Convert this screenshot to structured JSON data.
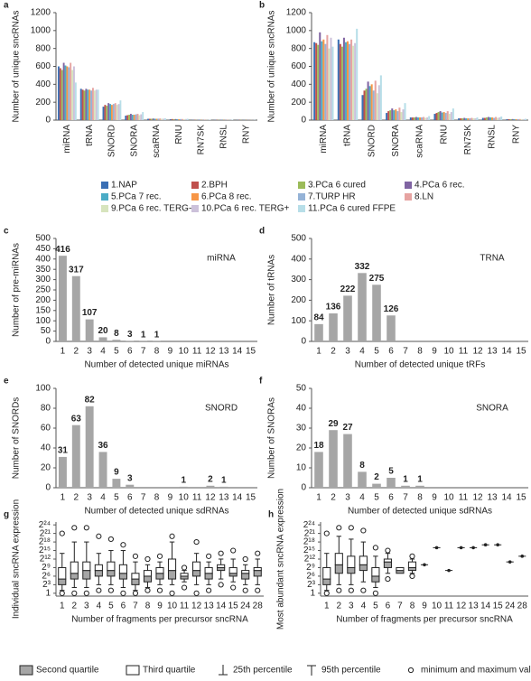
{
  "chart_data": [
    {
      "type": "grouped-bar",
      "panel_label": "a",
      "y_label": "Number of unique sncRNAs",
      "categories": [
        "miRNA",
        "tRNA",
        "SNORD",
        "SNORA",
        "scaRNA",
        "RNU",
        "RN7SK",
        "RNSL",
        "RNY"
      ],
      "ylim": [
        0,
        1200
      ],
      "yticks": [
        0,
        200,
        400,
        600,
        800,
        1000,
        1200
      ],
      "series": [
        {
          "name": "1.NAP",
          "color": "#3a6fb4",
          "values": [
            600,
            350,
            150,
            50,
            15,
            10,
            3,
            3,
            2
          ]
        },
        {
          "name": "2.BPH",
          "color": "#c0504d",
          "values": [
            580,
            340,
            170,
            55,
            15,
            12,
            3,
            3,
            2
          ]
        },
        {
          "name": "3.PCa 6 cured",
          "color": "#9bbb59",
          "values": [
            560,
            330,
            160,
            60,
            15,
            10,
            3,
            3,
            2
          ]
        },
        {
          "name": "4.PCa 6 rec.",
          "color": "#8064a2",
          "values": [
            640,
            350,
            190,
            70,
            18,
            12,
            4,
            4,
            2
          ]
        },
        {
          "name": "5.PCa 7 rec.",
          "color": "#4bacc6",
          "values": [
            610,
            340,
            180,
            60,
            15,
            10,
            3,
            3,
            2
          ]
        },
        {
          "name": "6.PCa 8 rec.",
          "color": "#f79646",
          "values": [
            600,
            340,
            170,
            60,
            15,
            10,
            3,
            3,
            2
          ]
        },
        {
          "name": "7.TURP HR",
          "color": "#95b3d7",
          "values": [
            590,
            330,
            180,
            65,
            16,
            12,
            3,
            3,
            2
          ]
        },
        {
          "name": "8.LN",
          "color": "#e6a3a1",
          "values": [
            640,
            360,
            190,
            70,
            18,
            12,
            4,
            4,
            2
          ]
        },
        {
          "name": "9.PCa 6 rec. TERG-",
          "color": "#d7e4bd",
          "values": [
            560,
            330,
            170,
            55,
            15,
            10,
            3,
            3,
            2
          ]
        },
        {
          "name": "10.PCa 6 rec. TERG+",
          "color": "#ccc1da",
          "values": [
            600,
            340,
            180,
            65,
            16,
            12,
            3,
            3,
            2
          ]
        },
        {
          "name": "11.PCa 6 cured FFPE",
          "color": "#b7dee8",
          "values": [
            420,
            340,
            220,
            90,
            20,
            15,
            5,
            5,
            3
          ]
        }
      ]
    },
    {
      "type": "grouped-bar",
      "panel_label": "b",
      "y_label": "Number of unique sncRNAs",
      "categories": [
        "miRNA",
        "tRNA",
        "SNORD",
        "SNORA",
        "scaRNA",
        "RNU",
        "RN7SK",
        "RNSL",
        "RNY"
      ],
      "ylim": [
        0,
        1200
      ],
      "yticks": [
        0,
        200,
        400,
        600,
        800,
        1000,
        1200
      ],
      "series": [
        {
          "name": "1.NAP",
          "color": "#3a6fb4",
          "values": [
            870,
            900,
            280,
            80,
            30,
            70,
            20,
            25,
            10
          ]
        },
        {
          "name": "2.BPH",
          "color": "#c0504d",
          "values": [
            860,
            850,
            330,
            100,
            30,
            80,
            20,
            25,
            10
          ]
        },
        {
          "name": "3.PCa 6 cured",
          "color": "#9bbb59",
          "values": [
            840,
            820,
            350,
            110,
            30,
            90,
            20,
            30,
            10
          ]
        },
        {
          "name": "4.PCa 6 rec.",
          "color": "#8064a2",
          "values": [
            980,
            920,
            430,
            130,
            35,
            100,
            25,
            35,
            12
          ]
        },
        {
          "name": "5.PCa 7 rec.",
          "color": "#4bacc6",
          "values": [
            880,
            870,
            380,
            110,
            30,
            85,
            20,
            30,
            10
          ]
        },
        {
          "name": "6.PCa 8 rec.",
          "color": "#f79646",
          "values": [
            900,
            880,
            400,
            120,
            30,
            90,
            20,
            30,
            10
          ]
        },
        {
          "name": "7.TURP HR",
          "color": "#95b3d7",
          "values": [
            850,
            850,
            330,
            100,
            30,
            80,
            20,
            25,
            10
          ]
        },
        {
          "name": "8.LN",
          "color": "#e6a3a1",
          "values": [
            950,
            900,
            440,
            140,
            35,
            100,
            25,
            35,
            12
          ]
        },
        {
          "name": "9.PCa 6 rec. TERG-",
          "color": "#d7e4bd",
          "values": [
            800,
            830,
            300,
            90,
            25,
            70,
            20,
            25,
            10
          ]
        },
        {
          "name": "10.PCa 6 rec. TERG+",
          "color": "#ccc1da",
          "values": [
            920,
            860,
            390,
            120,
            30,
            90,
            20,
            30,
            10
          ]
        },
        {
          "name": "11.PCa 6 cured FFPE",
          "color": "#b7dee8",
          "values": [
            820,
            1020,
            500,
            190,
            45,
            130,
            30,
            40,
            15
          ]
        }
      ]
    },
    {
      "type": "bar",
      "panel_label": "c",
      "annotation": "miRNA",
      "y_label": "Number of pre-miRNAs",
      "x_label": "Number of detected unique miRNAs",
      "color": "#a6a6a6",
      "categories": [
        "1",
        "2",
        "3",
        "4",
        "5",
        "6",
        "7",
        "8",
        "9",
        "10",
        "11",
        "12",
        "13",
        "14",
        "15"
      ],
      "values": [
        416,
        317,
        107,
        20,
        8,
        3,
        1,
        1,
        null,
        null,
        null,
        null,
        null,
        null,
        null
      ],
      "ylim": [
        0,
        500
      ],
      "yticks": [
        0,
        50,
        100,
        150,
        200,
        250,
        300,
        350,
        400,
        450,
        500
      ]
    },
    {
      "type": "bar",
      "panel_label": "d",
      "annotation": "TRNA",
      "y_label": "Number of tRNAs",
      "x_label": "Number of detected unique tRFs",
      "color": "#a6a6a6",
      "categories": [
        "1",
        "2",
        "3",
        "4",
        "5",
        "6",
        "7",
        "8",
        "9",
        "10",
        "11",
        "12",
        "13",
        "14",
        "15"
      ],
      "values": [
        84,
        136,
        222,
        332,
        275,
        126,
        null,
        null,
        null,
        null,
        null,
        null,
        null,
        null,
        null
      ],
      "ylim": [
        0,
        500
      ],
      "yticks": [
        0,
        100,
        200,
        300,
        400,
        500
      ]
    },
    {
      "type": "bar",
      "panel_label": "e",
      "annotation": "SNORD",
      "y_label": "Number of SNORDs",
      "x_label": "Number of detected unique sdRNAs",
      "color": "#a6a6a6",
      "categories": [
        "1",
        "2",
        "3",
        "4",
        "5",
        "6",
        "7",
        "8",
        "9",
        "10",
        "11",
        "12",
        "13",
        "14",
        "15"
      ],
      "values": [
        31,
        63,
        82,
        36,
        9,
        3,
        null,
        null,
        null,
        1,
        null,
        2,
        1,
        null,
        null
      ],
      "ylim": [
        0,
        100
      ],
      "yticks": [
        0,
        20,
        40,
        60,
        80,
        100
      ]
    },
    {
      "type": "bar",
      "panel_label": "f",
      "annotation": "SNORA",
      "y_label": "Number of SNORAs",
      "x_label": "Number of detected unique sdRNAs",
      "color": "#a6a6a6",
      "categories": [
        "1",
        "2",
        "3",
        "4",
        "5",
        "6",
        "7",
        "8",
        "9",
        "10",
        "11",
        "12",
        "13",
        "14",
        "15"
      ],
      "values": [
        18,
        29,
        27,
        8,
        2,
        5,
        1,
        1,
        null,
        null,
        null,
        null,
        null,
        null,
        null
      ],
      "ylim": [
        0,
        50
      ],
      "yticks": [
        0,
        10,
        20,
        30,
        40,
        50
      ]
    },
    {
      "type": "box",
      "panel_label": "g",
      "y_label": "Individual sncRNA expression",
      "x_label": "Number of fragments per precursor sncRNA",
      "log_base": 2,
      "categories": [
        "1",
        "2",
        "3",
        "4",
        "5",
        "6",
        "7",
        "8",
        "9",
        "10",
        "11",
        "12",
        "13",
        "14",
        "15",
        "24",
        "28"
      ],
      "min": [
        1,
        1,
        1,
        2,
        2,
        1,
        1,
        2,
        2,
        1,
        4,
        1,
        2,
        8,
        4,
        2,
        2
      ],
      "whisker_low": [
        2,
        4,
        4,
        8,
        8,
        4,
        2,
        4,
        8,
        8,
        16,
        8,
        8,
        32,
        16,
        8,
        8
      ],
      "q1": [
        8,
        32,
        32,
        64,
        64,
        32,
        8,
        16,
        32,
        32,
        32,
        64,
        32,
        256,
        64,
        32,
        64
      ],
      "median": [
        32,
        128,
        256,
        256,
        256,
        128,
        32,
        64,
        128,
        256,
        64,
        256,
        128,
        512,
        128,
        128,
        256
      ],
      "q3": [
        512,
        2048,
        2048,
        1024,
        2048,
        1024,
        128,
        256,
        512,
        4096,
        128,
        2048,
        512,
        1024,
        512,
        256,
        512
      ],
      "whisker_high": [
        16384,
        262144,
        262144,
        16384,
        32768,
        32768,
        2048,
        1024,
        2048,
        262144,
        256,
        16384,
        2048,
        4096,
        4096,
        1024,
        4096
      ],
      "max": [
        2097152,
        8388608,
        8388608,
        1048576,
        524288,
        131072,
        8192,
        4096,
        8192,
        1048576,
        512,
        262144,
        8192,
        16384,
        32768,
        4096,
        16384
      ],
      "ylim": [
        0.5,
        33554432
      ],
      "yticks": [
        1,
        {
          "value": 8,
          "label": "2³"
        },
        {
          "value": 64,
          "label": "2⁶"
        },
        {
          "value": 512,
          "label": "2⁹"
        },
        {
          "value": 4096,
          "label": "2¹²"
        },
        {
          "value": 32768,
          "label": "2¹⁵"
        },
        {
          "value": 262144,
          "label": "2¹⁸"
        },
        {
          "value": 2097152,
          "label": "2²¹"
        },
        {
          "value": 16777216,
          "label": "2²⁴"
        }
      ]
    },
    {
      "type": "box",
      "panel_label": "h",
      "y_label": "Most abundant sncRNA expression",
      "x_label": "Number of fragments per precursor sncRNA",
      "log_base": 2,
      "categories": [
        "1",
        "2",
        "3",
        "4",
        "5",
        "6",
        "7",
        "8",
        "9",
        "10",
        "11",
        "12",
        "13",
        "14",
        "15",
        "24",
        "28"
      ],
      "min": [
        1,
        2,
        2,
        2,
        1,
        32,
        null,
        64,
        null,
        null,
        null,
        null,
        null,
        null,
        null,
        null,
        null
      ],
      "whisker_low": [
        2,
        8,
        8,
        16,
        4,
        128,
        null,
        128,
        null,
        null,
        null,
        null,
        null,
        null,
        null,
        null,
        null
      ],
      "q1": [
        8,
        128,
        128,
        256,
        16,
        512,
        128,
        256,
        null,
        null,
        null,
        null,
        null,
        null,
        null,
        null,
        null
      ],
      "median": [
        32,
        1024,
        512,
        1024,
        64,
        2048,
        256,
        512,
        1024,
        65536,
        256,
        65536,
        65536,
        131072,
        131072,
        2048,
        8192
      ],
      "q3": [
        512,
        16384,
        8192,
        8192,
        512,
        4096,
        512,
        2048,
        null,
        null,
        null,
        null,
        null,
        null,
        null,
        null,
        null
      ],
      "whisker_high": [
        16384,
        1048576,
        524288,
        262144,
        8192,
        16384,
        null,
        4096,
        null,
        null,
        null,
        null,
        null,
        null,
        null,
        null,
        null
      ],
      "max": [
        2097152,
        8388608,
        8388608,
        4194304,
        65536,
        32768,
        null,
        8192,
        null,
        null,
        null,
        null,
        null,
        null,
        null,
        null,
        null
      ],
      "ylim": [
        0.5,
        33554432
      ],
      "yticks": [
        1,
        {
          "value": 8,
          "label": "2³"
        },
        {
          "value": 64,
          "label": "2⁶"
        },
        {
          "value": 512,
          "label": "2⁹"
        },
        {
          "value": 4096,
          "label": "2¹²"
        },
        {
          "value": 32768,
          "label": "2¹⁵"
        },
        {
          "value": 262144,
          "label": "2¹⁸"
        },
        {
          "value": 2097152,
          "label": "2²¹"
        },
        {
          "value": 16777216,
          "label": "2²⁴"
        }
      ]
    }
  ],
  "box_legend": [
    "Second quartile",
    "Third quartile",
    "25th percentile",
    "95th percentile",
    "minimum and maximum values"
  ]
}
